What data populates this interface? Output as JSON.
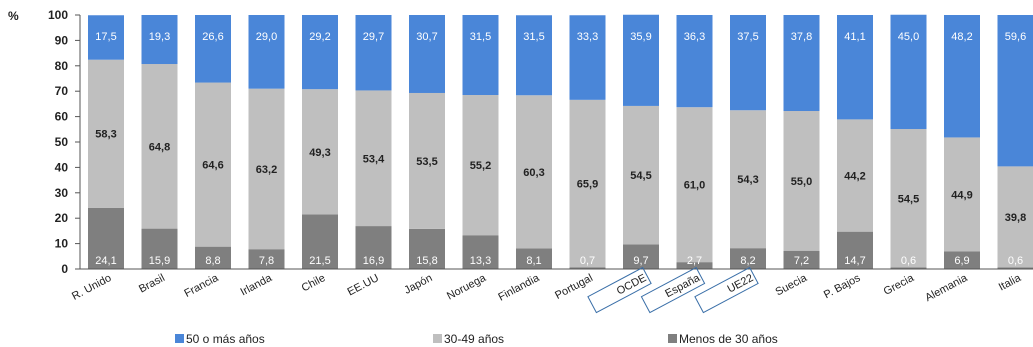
{
  "chart_data": {
    "type": "bar",
    "stacked": true,
    "y_unit_label": "%",
    "ylim": [
      0,
      100
    ],
    "yticks": [
      0,
      10,
      20,
      30,
      40,
      50,
      60,
      70,
      80,
      90,
      100
    ],
    "categories": [
      "R. Unido",
      "Brasil",
      "Francia",
      "Irlanda",
      "Chile",
      "EE.UU",
      "Japón",
      "Noruega",
      "Finlandia",
      "Portugal",
      "OCDE",
      "España",
      "UE22",
      "Suecia",
      "P. Bajos",
      "Grecia",
      "Alemania",
      "Italia"
    ],
    "highlighted_categories": [
      "OCDE",
      "España",
      "UE22"
    ],
    "series": [
      {
        "name": "Menos de 30 años",
        "color": "#7f7f7f",
        "label_color": "#ffffff",
        "values": [
          24.1,
          15.9,
          8.8,
          7.8,
          21.5,
          16.9,
          15.8,
          13.3,
          8.1,
          0.7,
          9.7,
          2.7,
          8.2,
          7.2,
          14.7,
          0.6,
          6.9,
          0.6
        ],
        "labels": [
          "24,1",
          "15,9",
          "8,8",
          "7,8",
          "21,5",
          "16,9",
          "15,8",
          "13,3",
          "8,1",
          "0,7",
          "9,7",
          "2,7",
          "8,2",
          "7,2",
          "14,7",
          "0,6",
          "6,9",
          "0,6"
        ]
      },
      {
        "name": "30-49 años",
        "color": "#bfbfbf",
        "label_color": "#222222",
        "values": [
          58.3,
          64.8,
          64.6,
          63.2,
          49.3,
          53.4,
          53.5,
          55.2,
          60.3,
          65.9,
          54.5,
          61.0,
          54.3,
          55.0,
          44.2,
          54.5,
          44.9,
          39.8
        ],
        "labels": [
          "58,3",
          "64,8",
          "64,6",
          "63,2",
          "49,3",
          "53,4",
          "53,5",
          "55,2",
          "60,3",
          "65,9",
          "54,5",
          "61,0",
          "54,3",
          "55,0",
          "44,2",
          "54,5",
          "44,9",
          "39,8"
        ]
      },
      {
        "name": "50 o más años",
        "color": "#4a86d8",
        "label_color": "#ffffff",
        "values": [
          17.5,
          19.3,
          26.6,
          29.0,
          29.2,
          29.7,
          30.7,
          31.5,
          31.5,
          33.3,
          35.9,
          36.3,
          37.5,
          37.8,
          41.1,
          45.0,
          48.2,
          59.6
        ],
        "labels": [
          "17,5",
          "19,3",
          "26,6",
          "29,0",
          "29,2",
          "29,7",
          "30,7",
          "31,5",
          "31,5",
          "33,3",
          "35,9",
          "36,3",
          "37,5",
          "37,8",
          "41,1",
          "45,0",
          "48,2",
          "59,6"
        ]
      }
    ],
    "legend": {
      "position": "bottom",
      "entries": [
        "50 o más años",
        "30-49 años",
        "Menos de 30 años"
      ]
    },
    "grid": false
  }
}
